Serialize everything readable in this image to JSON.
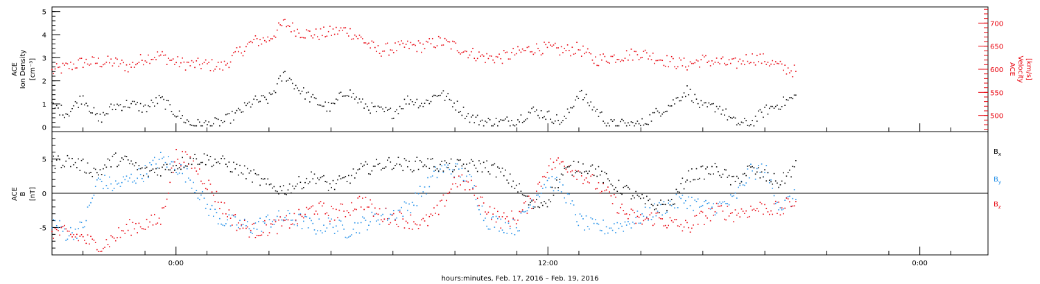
{
  "xlabel": "hours:minutes, Feb. 17, 2016 – Feb. 19, 2016",
  "x_axis": {
    "unit": "hours",
    "range": [
      -4,
      26.2
    ],
    "major_ticks": [
      0,
      12,
      24
    ],
    "tick_labels": [
      "0:00",
      "12:00",
      "0:00"
    ]
  },
  "colors": {
    "black": "#000000",
    "red": "#e8000b",
    "blue": "#1f8ee8"
  },
  "top_panel": {
    "left_label_lines": [
      "ACE",
      "Ion Density",
      "[cm⁻³]"
    ],
    "right_label_lines": [
      "ACE",
      "Velocity",
      "[km/s]"
    ],
    "left_ticks": [
      "0",
      "1",
      "2",
      "3",
      "4",
      "5"
    ],
    "right_ticks": [
      "500",
      "550",
      "600",
      "650",
      "700"
    ]
  },
  "bottom_panel": {
    "left_label_lines": [
      "ACE",
      "B",
      "[nT]"
    ],
    "left_ticks": [
      "-5",
      "0",
      "5"
    ],
    "legend": [
      "Bx",
      "By",
      "Bz"
    ]
  },
  "chart_data": [
    {
      "type": "scatter",
      "title": "",
      "xlabel": "",
      "ylabel": "ACE Ion Density [cm⁻³]",
      "y2label": "ACE Velocity [km/s]",
      "ylim": [
        -0.2,
        5.2
      ],
      "y2lim": [
        465,
        735
      ],
      "series": [
        {
          "name": "Ion Density",
          "axis": "left",
          "color": "#000000",
          "x": [
            -4.0,
            -3.5,
            -3.0,
            -2.5,
            -2.0,
            -1.5,
            -1.0,
            -0.5,
            0.0,
            0.5,
            1.0,
            1.5,
            2.0,
            2.5,
            3.0,
            3.5,
            4.0,
            4.5,
            5.0,
            5.5,
            6.0,
            6.5,
            7.0,
            7.5,
            8.0,
            8.5,
            9.0,
            9.5,
            10.0,
            10.5,
            11.0,
            11.5,
            12.0,
            12.5,
            13.0,
            13.5,
            14.0,
            14.5,
            15.0,
            15.5,
            16.0,
            16.5,
            17.0,
            17.5,
            18.0,
            18.5,
            19.0,
            19.5,
            20.0
          ],
          "y": [
            0.9,
            0.6,
            1.3,
            0.3,
            0.9,
            1.0,
            0.8,
            1.2,
            0.6,
            0.1,
            0.1,
            0.2,
            0.6,
            1.1,
            1.2,
            2.3,
            1.6,
            1.1,
            0.8,
            1.6,
            1.0,
            0.7,
            0.6,
            1.2,
            1.0,
            1.5,
            1.0,
            0.4,
            0.2,
            0.2,
            0.3,
            0.7,
            0.5,
            0.2,
            1.5,
            0.8,
            0.1,
            0.1,
            0.1,
            0.6,
            1.0,
            1.6,
            0.8,
            0.9,
            0.2,
            0.1,
            0.7,
            1.0,
            1.3
          ]
        },
        {
          "name": "Velocity",
          "axis": "right",
          "color": "#e8000b",
          "x": [
            -4.0,
            -3.5,
            -3.0,
            -2.5,
            -2.0,
            -1.5,
            -1.0,
            -0.5,
            0.0,
            0.5,
            1.0,
            1.5,
            2.0,
            2.5,
            3.0,
            3.5,
            4.0,
            4.5,
            5.0,
            5.5,
            6.0,
            6.5,
            7.0,
            7.5,
            8.0,
            8.5,
            9.0,
            9.5,
            10.0,
            10.5,
            11.0,
            11.5,
            12.0,
            12.5,
            13.0,
            13.5,
            14.0,
            14.5,
            15.0,
            15.5,
            16.0,
            16.5,
            17.0,
            17.5,
            18.0,
            18.5,
            19.0,
            19.5,
            20.0
          ],
          "y": [
            595,
            605,
            615,
            615,
            615,
            605,
            625,
            630,
            615,
            610,
            610,
            605,
            635,
            660,
            665,
            700,
            680,
            675,
            680,
            685,
            665,
            640,
            645,
            650,
            650,
            660,
            650,
            635,
            625,
            625,
            635,
            645,
            645,
            640,
            645,
            620,
            625,
            630,
            635,
            625,
            615,
            610,
            620,
            615,
            610,
            625,
            620,
            605,
            595
          ]
        }
      ]
    },
    {
      "type": "scatter",
      "title": "",
      "xlabel": "hours:minutes, Feb. 17, 2016 – Feb. 19, 2016",
      "ylabel": "ACE B [nT]",
      "ylim": [
        -9,
        9
      ],
      "series": [
        {
          "name": "Bx",
          "color": "#000000",
          "x": [
            -4.0,
            -3.5,
            -3.0,
            -2.5,
            -2.0,
            -1.5,
            -1.0,
            -0.5,
            0.0,
            0.5,
            1.0,
            1.5,
            2.0,
            2.5,
            3.0,
            3.5,
            4.0,
            4.5,
            5.0,
            5.5,
            6.0,
            6.5,
            7.0,
            7.5,
            8.0,
            8.5,
            9.0,
            9.5,
            10.0,
            10.5,
            11.0,
            11.5,
            12.0,
            12.5,
            13.0,
            13.5,
            14.0,
            14.5,
            15.0,
            15.5,
            16.0,
            16.5,
            17.0,
            17.5,
            18.0,
            18.5,
            19.0,
            19.5,
            20.0
          ],
          "y": [
            4.5,
            4.8,
            4.0,
            3.0,
            5.0,
            4.5,
            3.0,
            3.5,
            4.0,
            5.0,
            5.0,
            4.5,
            3.5,
            2.5,
            1.0,
            0.5,
            1.5,
            2.5,
            1.0,
            2.0,
            3.5,
            4.0,
            4.5,
            4.0,
            4.5,
            4.0,
            4.0,
            4.0,
            4.0,
            3.0,
            1.0,
            -2.0,
            -1.0,
            3.0,
            4.0,
            3.5,
            1.5,
            0.5,
            -1.0,
            -2.0,
            -1.5,
            2.5,
            3.0,
            3.5,
            1.5,
            3.5,
            2.5,
            1.5,
            4.0
          ]
        },
        {
          "name": "By",
          "color": "#1f8ee8",
          "x": [
            -4.0,
            -3.5,
            -3.0,
            -2.5,
            -2.0,
            -1.5,
            -1.0,
            -0.5,
            0.0,
            0.5,
            1.0,
            1.5,
            2.0,
            2.5,
            3.0,
            3.5,
            4.0,
            4.5,
            5.0,
            5.5,
            6.0,
            6.5,
            7.0,
            7.5,
            8.0,
            8.5,
            9.0,
            9.5,
            10.0,
            10.5,
            11.0,
            11.5,
            12.0,
            12.5,
            13.0,
            13.5,
            14.0,
            14.5,
            15.0,
            15.5,
            16.0,
            16.5,
            17.0,
            17.5,
            18.0,
            18.5,
            19.0,
            19.5,
            20.0
          ],
          "y": [
            -4.0,
            -6.0,
            -5.0,
            2.0,
            1.0,
            2.0,
            3.0,
            5.0,
            4.0,
            2.0,
            -2.0,
            -4.0,
            -4.5,
            -5.0,
            -4.0,
            -3.5,
            -4.0,
            -5.0,
            -4.5,
            -5.5,
            -4.5,
            -3.5,
            -3.0,
            -2.0,
            0.5,
            3.5,
            3.5,
            2.0,
            -4.0,
            -4.5,
            -5.0,
            -1.0,
            2.0,
            0.5,
            -4.0,
            -5.0,
            -5.0,
            -4.5,
            -3.5,
            -2.5,
            -1.5,
            -1.0,
            -2.0,
            -2.0,
            -1.0,
            3.0,
            3.5,
            -2.0,
            -0.5
          ]
        },
        {
          "name": "Bz",
          "color": "#e8000b",
          "x": [
            -4.0,
            -3.5,
            -3.0,
            -2.5,
            -2.0,
            -1.5,
            -1.0,
            -0.5,
            0.0,
            0.5,
            1.0,
            1.5,
            2.0,
            2.5,
            3.0,
            3.5,
            4.0,
            4.5,
            5.0,
            5.5,
            6.0,
            6.5,
            7.0,
            7.5,
            8.0,
            8.5,
            9.0,
            9.5,
            10.0,
            10.5,
            11.0,
            11.5,
            12.0,
            12.5,
            13.0,
            13.5,
            14.0,
            14.5,
            15.0,
            15.5,
            16.0,
            16.5,
            17.0,
            17.5,
            18.0,
            18.5,
            19.0,
            19.5,
            20.0
          ],
          "y": [
            -5.5,
            -6.0,
            -6.5,
            -8.0,
            -6.5,
            -5.0,
            -4.5,
            -4.0,
            5.5,
            4.5,
            1.5,
            -2.0,
            -4.5,
            -5.5,
            -5.0,
            -4.5,
            -3.5,
            -2.0,
            -3.0,
            -2.5,
            -1.0,
            -3.0,
            -3.5,
            -4.0,
            -4.5,
            -2.5,
            2.0,
            1.0,
            -2.0,
            -4.0,
            -3.5,
            -1.0,
            4.0,
            4.5,
            3.0,
            1.5,
            -0.5,
            -3.0,
            -4.0,
            -3.5,
            -4.5,
            -5.0,
            -3.5,
            -2.5,
            -3.0,
            -2.5,
            -2.0,
            -2.5,
            -1.0
          ]
        }
      ]
    }
  ]
}
